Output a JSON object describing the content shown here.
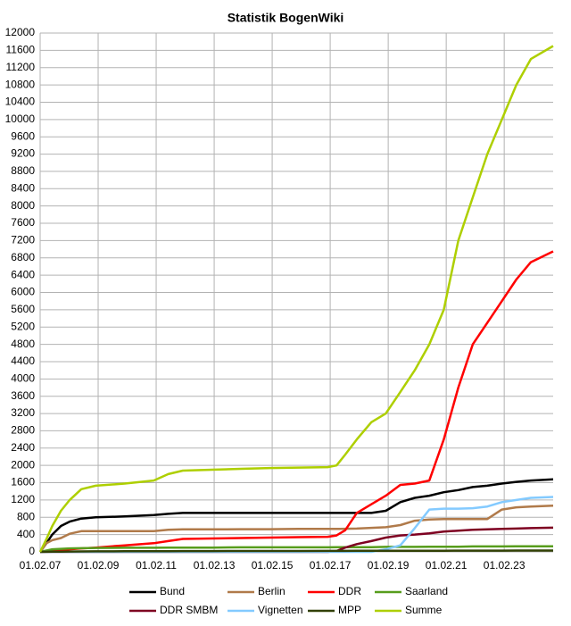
{
  "chart_data": {
    "type": "line",
    "title": "Statistik BogenWiki",
    "x": [
      2007.083,
      2007.3,
      2007.5,
      2007.8,
      2008.1,
      2008.5,
      2009,
      2010,
      2011,
      2011.5,
      2012,
      2013,
      2014,
      2015,
      2016,
      2017,
      2017.3,
      2017.6,
      2018,
      2018.5,
      2019,
      2019.5,
      2020,
      2020.5,
      2021,
      2021.5,
      2022,
      2022.5,
      2023,
      2023.5,
      2024,
      2024.77
    ],
    "series": [
      {
        "name": "Bund",
        "color": "#000000",
        "values": [
          0,
          200,
          400,
          600,
          700,
          770,
          800,
          820,
          850,
          880,
          900,
          900,
          900,
          900,
          900,
          900,
          900,
          900,
          900,
          900,
          950,
          1150,
          1250,
          1300,
          1380,
          1430,
          1500,
          1530,
          1580,
          1620,
          1650,
          1680
        ]
      },
      {
        "name": "Berlin",
        "color": "#b07a4a",
        "values": [
          0,
          200,
          270,
          320,
          420,
          480,
          480,
          480,
          480,
          510,
          520,
          520,
          525,
          525,
          530,
          530,
          530,
          535,
          540,
          555,
          570,
          620,
          720,
          750,
          760,
          760,
          760,
          760,
          980,
          1030,
          1050,
          1070
        ]
      },
      {
        "name": "DDR",
        "color": "#ff0000",
        "values": [
          0,
          5,
          20,
          40,
          60,
          80,
          100,
          150,
          200,
          250,
          300,
          310,
          320,
          330,
          340,
          350,
          380,
          500,
          900,
          1100,
          1300,
          1550,
          1580,
          1650,
          2600,
          3800,
          4800,
          5300,
          5800,
          6300,
          6700,
          6950
        ]
      },
      {
        "name": "Saarland",
        "color": "#579d1c",
        "values": [
          0,
          30,
          60,
          70,
          80,
          85,
          90,
          95,
          95,
          100,
          100,
          100,
          105,
          105,
          105,
          105,
          110,
          110,
          110,
          110,
          115,
          115,
          115,
          120,
          120,
          120,
          125,
          125,
          125,
          130,
          130,
          130
        ]
      },
      {
        "name": "DDR SMBM",
        "color": "#7e0021",
        "values": [
          0,
          0,
          0,
          0,
          0,
          0,
          0,
          0,
          0,
          0,
          0,
          0,
          0,
          0,
          0,
          0,
          20,
          100,
          180,
          250,
          330,
          380,
          400,
          430,
          470,
          490,
          510,
          520,
          530,
          540,
          550,
          560
        ]
      },
      {
        "name": "Vignetten",
        "color": "#83caff",
        "values": [
          0,
          0,
          0,
          0,
          0,
          0,
          0,
          0,
          0,
          0,
          0,
          0,
          0,
          0,
          0,
          0,
          0,
          0,
          0,
          0,
          60,
          150,
          550,
          980,
          1000,
          1000,
          1010,
          1050,
          1150,
          1200,
          1250,
          1270
        ]
      },
      {
        "name": "MPP",
        "color": "#314004",
        "values": [
          0,
          2,
          4,
          6,
          8,
          10,
          12,
          14,
          16,
          17,
          18,
          19,
          20,
          20,
          21,
          22,
          22,
          23,
          24,
          24,
          25,
          26,
          26,
          27,
          27,
          28,
          28,
          29,
          29,
          30,
          30,
          30
        ]
      },
      {
        "name": "Summe",
        "color": "#aecf00",
        "values": [
          0,
          300,
          600,
          950,
          1200,
          1450,
          1530,
          1580,
          1650,
          1800,
          1880,
          1900,
          1920,
          1940,
          1950,
          1960,
          2000,
          2250,
          2600,
          3000,
          3200,
          3700,
          4200,
          4800,
          5600,
          7200,
          8200,
          9200,
          10000,
          10800,
          11400,
          11700
        ]
      }
    ],
    "xlim": [
      2007.083,
      2024.77
    ],
    "xticks": [
      {
        "value": 2007.083,
        "label": "01.02.07"
      },
      {
        "value": 2009.083,
        "label": "01.02.09"
      },
      {
        "value": 2011.083,
        "label": "01.02.11"
      },
      {
        "value": 2013.083,
        "label": "01.02.13"
      },
      {
        "value": 2015.083,
        "label": "01.02.15"
      },
      {
        "value": 2017.083,
        "label": "01.02.17"
      },
      {
        "value": 2019.083,
        "label": "01.02.19"
      },
      {
        "value": 2021.083,
        "label": "01.02.21"
      },
      {
        "value": 2023.083,
        "label": "01.02.23"
      }
    ],
    "ylim": [
      0,
      12000
    ],
    "yticks": [
      0,
      400,
      800,
      1200,
      1600,
      2000,
      2400,
      2800,
      3200,
      3600,
      4000,
      4400,
      4800,
      5200,
      5600,
      6000,
      6400,
      6800,
      7200,
      7600,
      8000,
      8400,
      8800,
      9200,
      9600,
      10000,
      10400,
      10800,
      11200,
      11600,
      12000
    ],
    "grid": true,
    "legend": "bottom"
  }
}
